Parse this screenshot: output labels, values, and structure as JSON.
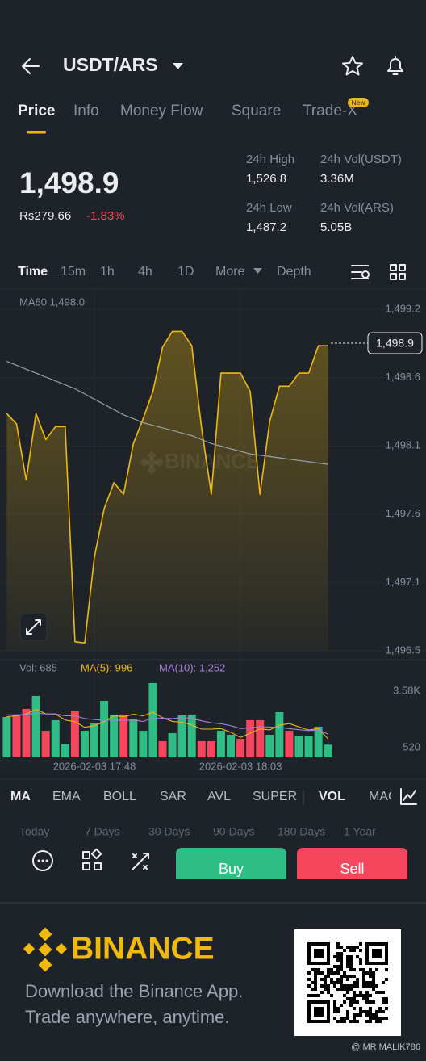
{
  "header": {
    "pair": "USDT/ARS"
  },
  "tabs": [
    "Price",
    "Info",
    "Money Flow",
    "Square",
    "Trade-X"
  ],
  "tab_badge": "New",
  "price": {
    "last": "1,498.9",
    "fiat": "Rs279.66",
    "change": "-1.83%"
  },
  "stats": [
    {
      "label": "24h High",
      "value": "1,526.8"
    },
    {
      "label": "24h Vol(USDT)",
      "value": "3.36M"
    },
    {
      "label": "24h Low",
      "value": "1,487.2"
    },
    {
      "label": "24h Vol(ARS)",
      "value": "5.05B"
    }
  ],
  "timeframes": [
    "Time",
    "15m",
    "1h",
    "4h",
    "1D",
    "More",
    "Depth"
  ],
  "chart_data": [
    {
      "type": "line",
      "series": [
        {
          "color": "#f0b90b",
          "values": [
            1498.36,
            1498.28,
            1497.85,
            1498.36,
            1498.16,
            1498.26,
            1498.26,
            1496.61,
            1496.6,
            1497.26,
            1497.63,
            1497.83,
            1497.74,
            1498.13,
            1498.32,
            1498.53,
            1498.87,
            1498.99,
            1498.99,
            1498.88,
            1498.25,
            1497.74,
            1498.67,
            1498.67,
            1498.67,
            1498.53,
            1497.74,
            1498.3,
            1498.57,
            1498.57,
            1498.67,
            1498.67,
            1498.88,
            1498.88
          ]
        },
        {
          "name": "MA60 1,498.0",
          "color": "#9aa0a8",
          "values": [
            1498.76,
            1498.73,
            1498.7,
            1498.67,
            1498.64,
            1498.61,
            1498.58,
            1498.55,
            1498.51,
            1498.47,
            1498.43,
            1498.39,
            1498.35,
            1498.32,
            1498.29,
            1498.27,
            1498.25,
            1498.23,
            1498.21,
            1498.19,
            1498.16,
            1498.13,
            1498.11,
            1498.09,
            1498.07,
            1498.05,
            1498.04,
            1498.03,
            1498.02,
            1498.01,
            1498.0,
            1497.99,
            1497.98,
            1497.97
          ]
        }
      ],
      "ylim": [
        1496.54,
        1499.16
      ],
      "yticks": [
        {
          "value": 1496.54,
          "label": "1,496.5"
        },
        {
          "value": 1497.064,
          "label": "1,497.1"
        },
        {
          "value": 1497.588,
          "label": "1,497.6"
        },
        {
          "value": 1498.112,
          "label": "1,498.1"
        },
        {
          "value": 1498.636,
          "label": "1,498.6"
        },
        {
          "value": 1499.16,
          "label": "1,499.2"
        }
      ],
      "price_marker": {
        "value": 1498.9,
        "label": "1,498.9"
      },
      "watermark": "BINANCE",
      "grid": true
    },
    {
      "type": "bar",
      "categories": [
        null,
        null,
        null,
        null,
        null,
        null,
        null,
        null,
        null,
        "2026-02-03 17:48",
        null,
        null,
        null,
        null,
        null,
        null,
        null,
        null,
        null,
        null,
        null,
        null,
        null,
        null,
        "2026-02-03 18:03",
        null,
        null,
        null,
        null,
        null,
        null,
        null,
        null,
        null
      ],
      "bar_legend": "Vol: 685",
      "values": [
        2185,
        2316,
        2622,
        3321,
        1442,
        2010,
        699,
        2535,
        1442,
        1879,
        3059,
        2316,
        2316,
        2098,
        1442,
        4020,
        874,
        1311,
        2272,
        2316,
        874,
        874,
        1442,
        1224,
        1005,
        2010,
        2010,
        1224,
        2447,
        1442,
        1136,
        1136,
        1661,
        685
      ],
      "colors": [
        "#2ebd85",
        "#f6465d",
        "#f6465d",
        "#2ebd85",
        "#f6465d",
        "#2ebd85",
        "#2ebd85",
        "#f6465d",
        "#2ebd85",
        "#2ebd85",
        "#2ebd85",
        "#2ebd85",
        "#f6465d",
        "#2ebd85",
        "#2ebd85",
        "#2ebd85",
        "#f6465d",
        "#2ebd85",
        "#2ebd85",
        "#2ebd85",
        "#f6465d",
        "#f6465d",
        "#2ebd85",
        "#2ebd85",
        "#f6465d",
        "#f6465d",
        "#f6465d",
        "#2ebd85",
        "#2ebd85",
        "#f6465d",
        "#2ebd85",
        "#2ebd85",
        "#2ebd85",
        "#2ebd85"
      ],
      "series": [
        {
          "name": "MA(5): 996",
          "color": "#f0b90b",
          "values": [
            2200,
            2250,
            2350,
            2600,
            2360,
            2340,
            2020,
            1930,
            1630,
            1710,
            1930,
            2250,
            2200,
            2330,
            2250,
            2440,
            2150,
            1950,
            1900,
            1760,
            1530,
            1530,
            1560,
            1360,
            1080,
            1310,
            1540,
            1490,
            1740,
            1830,
            1650,
            1480,
            1560,
            996
          ]
        },
        {
          "name": "MA(10): 1,252",
          "color": "#a77fe0",
          "values": [
            2300,
            2300,
            2320,
            2400,
            2350,
            2350,
            2250,
            2250,
            2100,
            2050,
            2000,
            2020,
            2000,
            2020,
            1940,
            2140,
            2120,
            2100,
            2150,
            2110,
            1980,
            1870,
            1820,
            1720,
            1560,
            1600,
            1660,
            1640,
            1620,
            1560,
            1500,
            1450,
            1480,
            1252
          ]
        }
      ],
      "ylim": [
        0,
        4280
      ],
      "yticks": [
        {
          "value": 3580,
          "label": "3.58K"
        },
        520
      ]
    }
  ],
  "indicators": [
    "MA",
    "EMA",
    "BOLL",
    "SAR",
    "AVL",
    "SUPER",
    "VOL",
    "MAC"
  ],
  "periods": [
    "Today",
    "7 Days",
    "30 Days",
    "90 Days",
    "180 Days",
    "1 Year"
  ],
  "actions": {
    "buy": "Buy",
    "sell": "Sell"
  },
  "footer": {
    "brand": "BINANCE",
    "line1": "Download the Binance App.",
    "line2": "Trade anywhere, anytime.",
    "credit": "@ MR MALIK786"
  }
}
